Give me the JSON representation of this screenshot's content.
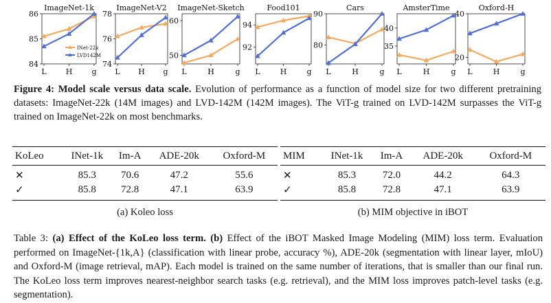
{
  "colors": {
    "inet22k": "#f5a95f",
    "lvd142m": "#4f6fd6",
    "axis": "#222222"
  },
  "figure": {
    "legend": {
      "inet22k": "INet-22k",
      "lvd142m": "LVD142M"
    },
    "caption": {
      "label": "Figure 4:",
      "title": "Model scale versus data scale.",
      "text": "Evolution of performance as a function of model size for two different pretraining datasets: ImageNet-22k (14M images) and LVD-142M (142M images). The ViT-g trained on LVD-142M surpasses the ViT-g trained on ImageNet-22k on most benchmarks."
    }
  },
  "chart_data": [
    {
      "type": "line",
      "title": "ImageNet-1k",
      "categories": [
        "L",
        "H",
        "g"
      ],
      "ylim": [
        84,
        86
      ],
      "yticks": [
        "84",
        "85",
        "86"
      ],
      "series": [
        {
          "name": "INet-22k",
          "values": [
            85.1,
            85.4,
            85.9
          ]
        },
        {
          "name": "LVD142M",
          "values": [
            84.7,
            85.2,
            86.0
          ]
        }
      ],
      "legend": "bottom-right"
    },
    {
      "type": "line",
      "title": "ImageNet-V2",
      "categories": [
        "L",
        "H",
        "g"
      ],
      "ylim": [
        74,
        78
      ],
      "yticks": [
        "74",
        "76",
        "78"
      ],
      "series": [
        {
          "name": "INet-22k",
          "values": [
            76.2,
            76.9,
            77.2
          ]
        },
        {
          "name": "LVD142M",
          "values": [
            74.5,
            76.3,
            77.7
          ]
        }
      ]
    },
    {
      "type": "line",
      "title": "ImageNet-Sketch",
      "categories": [
        "L",
        "H",
        "g"
      ],
      "ylim": [
        47.5,
        62
      ],
      "yticks": [
        "50",
        "60"
      ],
      "series": [
        {
          "name": "INet-22k",
          "values": [
            47.8,
            50.0,
            54.7
          ]
        },
        {
          "name": "LVD142M",
          "values": [
            50.0,
            54.3,
            61.2
          ]
        }
      ]
    },
    {
      "type": "line",
      "title": "Food101",
      "categories": [
        "L",
        "H",
        "g"
      ],
      "ylim": [
        90.5,
        95
      ],
      "yticks": [
        "92",
        "94"
      ],
      "series": [
        {
          "name": "INet-22k",
          "values": [
            93.8,
            94.4,
            94.8
          ]
        },
        {
          "name": "LVD142M",
          "values": [
            91.2,
            93.3,
            94.6
          ]
        }
      ]
    },
    {
      "type": "line",
      "title": "Cars",
      "categories": [
        "L",
        "H",
        "g"
      ],
      "ylim": [
        74,
        90
      ],
      "yticks": [
        "80",
        "90"
      ],
      "series": [
        {
          "name": "INet-22k",
          "values": [
            82.5,
            80.5,
            85.0
          ]
        },
        {
          "name": "LVD142M",
          "values": [
            74.3,
            80.3,
            90.0
          ]
        }
      ]
    },
    {
      "type": "line",
      "title": "AmsterTime",
      "categories": [
        "L",
        "H",
        "g"
      ],
      "ylim": [
        30,
        44
      ],
      "yticks": [
        "35",
        "40"
      ],
      "series": [
        {
          "name": "INet-22k",
          "values": [
            32.5,
            31.0,
            33.5
          ]
        },
        {
          "name": "LVD142M",
          "values": [
            37.0,
            39.5,
            43.5
          ]
        }
      ]
    },
    {
      "type": "line",
      "title": "Oxford-H",
      "categories": [
        "L",
        "H",
        "g"
      ],
      "ylim": [
        17,
        40
      ],
      "yticks": [
        "20",
        "40"
      ],
      "series": [
        {
          "name": "INet-22k",
          "values": [
            23.5,
            18.0,
            21.5
          ]
        },
        {
          "name": "LVD142M",
          "values": [
            31.0,
            35.5,
            40.0
          ]
        }
      ]
    }
  ],
  "table_a": {
    "headers": [
      "KoLeo",
      "INet-1k",
      "Im-A",
      "ADE-20k",
      "Oxford-M"
    ],
    "rows": [
      [
        "✕",
        "85.3",
        "70.6",
        "47.2",
        "55.6"
      ],
      [
        "✓",
        "85.8",
        "72.8",
        "47.1",
        "63.9"
      ]
    ],
    "caption": "(a) Koleo loss"
  },
  "table_b": {
    "headers": [
      "MIM",
      "INet-1k",
      "Im-A",
      "ADE-20k",
      "Oxford-M"
    ],
    "rows": [
      [
        "✕",
        "85.3",
        "72.0",
        "44.2",
        "64.3"
      ],
      [
        "✓",
        "85.8",
        "72.8",
        "47.1",
        "63.9"
      ]
    ],
    "caption": "(b) MIM objective in iBOT"
  },
  "table_caption": {
    "label": "Table 3:",
    "a_label": "(a)",
    "a_text": "Effect of the KoLeo loss term.",
    "b_label": "(b)",
    "b_text": "Effect of the iBOT Masked Image Modeling (MIM) loss term.",
    "text": "Evaluation performed on ImageNet-{1k,A} (classification with linear probe, accuracy %), ADE-20k (segmentation with linear layer, mIoU) and Oxford-M (image retrieval, mAP). Each model is trained on the same number of iterations, that is smaller than our final run. The KoLeo loss term improves nearest-neighbor search tasks (e.g. retrieval), and the MIM loss improves patch-level tasks (e.g. segmentation)."
  }
}
